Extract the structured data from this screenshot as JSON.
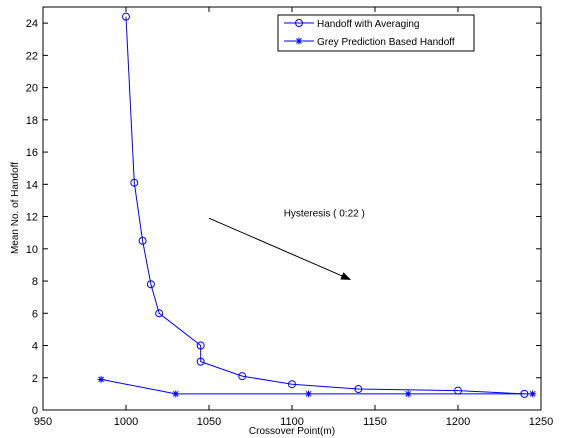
{
  "chart_data": {
    "type": "line",
    "xlabel": "Crossover Point(m)",
    "ylabel": "Mean No. of Handoff",
    "xlim": [
      950,
      1250
    ],
    "ylim": [
      0,
      25
    ],
    "xticks": [
      950,
      1000,
      1050,
      1100,
      1150,
      1200,
      1250
    ],
    "yticks": [
      0,
      2,
      4,
      6,
      8,
      10,
      12,
      14,
      16,
      18,
      20,
      22,
      24
    ],
    "grid": false,
    "legend_position": "top-right",
    "series": [
      {
        "name": "Handoff with Averaging",
        "marker": "circle",
        "x": [
          1000,
          1005,
          1010,
          1015,
          1020,
          1045,
          1045,
          1070,
          1100,
          1140,
          1200,
          1240
        ],
        "y": [
          24.4,
          14.1,
          10.5,
          7.8,
          6.0,
          4.0,
          3.0,
          2.1,
          1.6,
          1.3,
          1.2,
          1.0
        ]
      },
      {
        "name": "Grey Prediction Based Handoff",
        "marker": "star",
        "x": [
          985,
          1030,
          1110,
          1170,
          1245
        ],
        "y": [
          1.9,
          1.0,
          1.0,
          1.0,
          1.0
        ]
      }
    ],
    "annotations": [
      {
        "text": "Hysteresis ( 0:22 )",
        "text_x": 1095,
        "text_y": 12.0,
        "arrow_from": [
          1050,
          11.9
        ],
        "arrow_to": [
          1135,
          8.1
        ]
      }
    ]
  }
}
